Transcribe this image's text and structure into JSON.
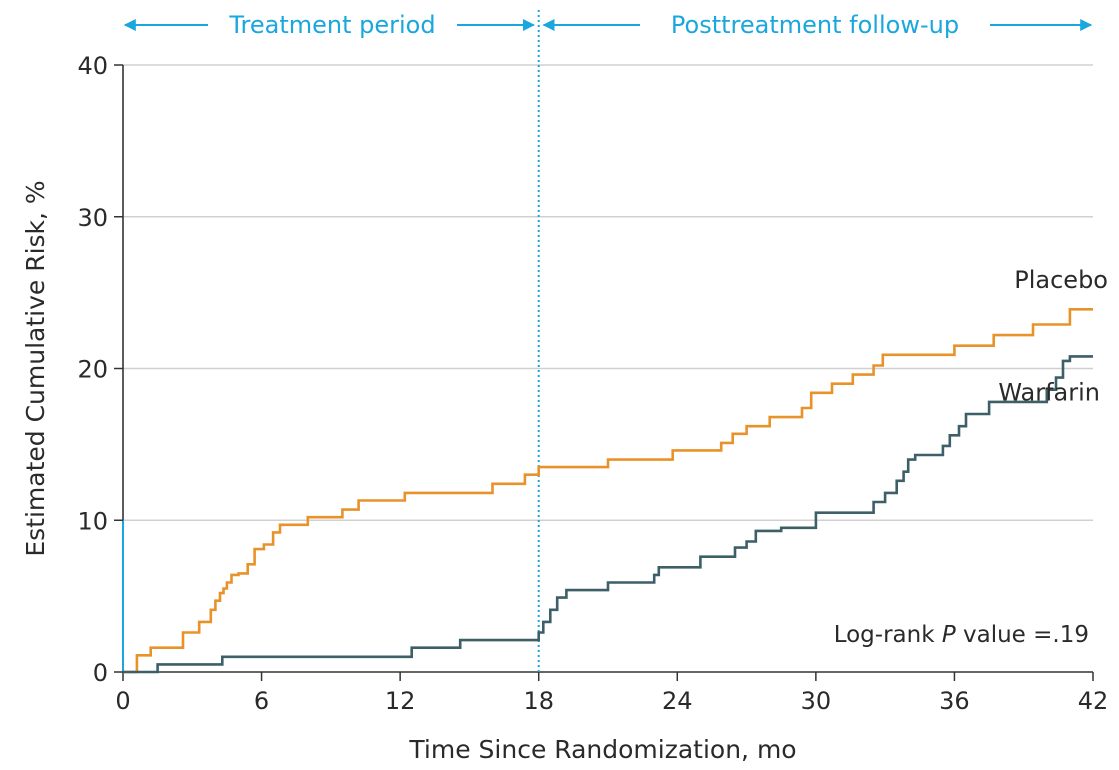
{
  "chart_data": {
    "type": "line",
    "step": true,
    "xlabel": "Time Since Randomization, mo",
    "ylabel": "Estimated Cumulative Risk, %",
    "xlim": [
      0,
      42
    ],
    "ylim": [
      0,
      40
    ],
    "xticks": [
      0,
      6,
      12,
      18,
      24,
      30,
      36,
      42
    ],
    "yticks": [
      0,
      10,
      20,
      30,
      40
    ],
    "grid": "horizontal",
    "annotation": {
      "prefix": "Log-rank ",
      "italic": "P",
      "suffix": " value =.19"
    },
    "periods": [
      {
        "label": "Treatment period",
        "from": 0,
        "to": 18
      },
      {
        "label": "Posttreatment follow-up",
        "from": 18,
        "to": 42
      }
    ],
    "divider_x": 18,
    "colors": {
      "placebo": "#e8922a",
      "warfarin": "#3d5f68",
      "accent": "#1aa7dd",
      "grid": "#d0d0d0",
      "axis": "#333333"
    },
    "series": [
      {
        "name": "Placebo",
        "x": [
          0,
          0.6,
          1.2,
          2.6,
          3.3,
          3.8,
          4.0,
          4.2,
          4.35,
          4.5,
          4.7,
          5.0,
          5.4,
          5.7,
          6.1,
          6.5,
          6.8,
          7.1,
          8.0,
          9.5,
          10.2,
          12.2,
          16.0,
          17.4,
          18.0,
          21.0,
          23.8,
          25.9,
          26.4,
          27.0,
          28.0,
          29.4,
          29.8,
          30.7,
          31.6,
          32.5,
          32.9,
          36.0,
          37.7,
          39.4,
          41.0,
          42.0
        ],
        "y": [
          0,
          1.1,
          1.6,
          2.6,
          3.3,
          4.1,
          4.7,
          5.2,
          5.5,
          5.9,
          6.4,
          6.5,
          7.1,
          8.1,
          8.4,
          9.2,
          9.7,
          9.7,
          10.2,
          10.7,
          11.3,
          11.8,
          12.4,
          13.0,
          13.5,
          14.0,
          14.6,
          15.1,
          15.7,
          16.2,
          16.8,
          17.4,
          18.4,
          19.0,
          19.6,
          20.2,
          20.9,
          21.5,
          22.2,
          22.9,
          23.9,
          23.9
        ]
      },
      {
        "name": "Warfarin",
        "x": [
          0,
          1.5,
          4.3,
          12.5,
          14.6,
          18.0,
          18.2,
          18.5,
          18.8,
          19.2,
          19.7,
          21.0,
          23.0,
          23.2,
          25.0,
          26.5,
          27.0,
          27.4,
          28.5,
          30.0,
          32.5,
          33.0,
          33.5,
          33.8,
          34.0,
          34.3,
          35.5,
          35.8,
          36.2,
          36.5,
          37.5,
          40.0,
          40.4,
          40.7,
          41.0,
          42.0
        ],
        "y": [
          0,
          0.5,
          1.0,
          1.6,
          2.1,
          2.6,
          3.3,
          4.1,
          4.9,
          5.4,
          5.4,
          5.9,
          6.4,
          6.9,
          7.6,
          8.2,
          8.6,
          9.3,
          9.5,
          10.5,
          11.2,
          11.8,
          12.6,
          13.2,
          14.0,
          14.3,
          14.9,
          15.6,
          16.2,
          17.0,
          17.8,
          18.6,
          19.4,
          20.5,
          20.8,
          20.8
        ]
      }
    ]
  }
}
